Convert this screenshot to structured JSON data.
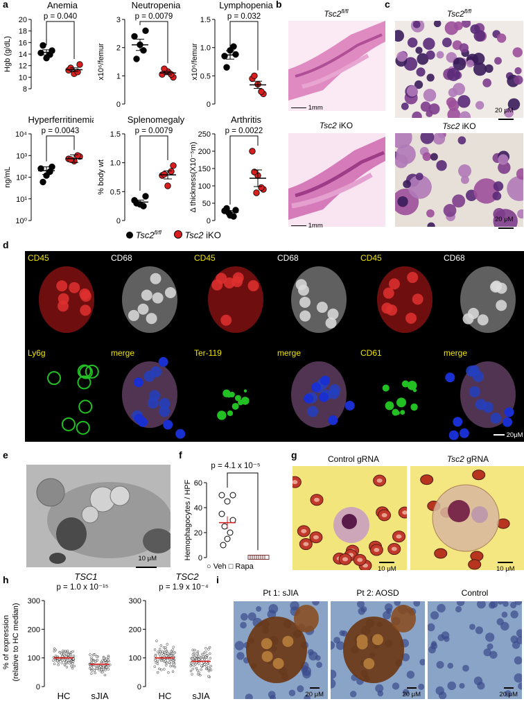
{
  "panels": {
    "a": "a",
    "b": "b",
    "c": "c",
    "d": "d",
    "e": "e",
    "f": "f",
    "g": "g",
    "h": "h",
    "i": "i"
  },
  "panel_a": {
    "legend": {
      "wt_gene": "Tsc2",
      "wt_sup": "fl/fl",
      "ko_gene": "Tsc2",
      "ko_label": "iKO",
      "wt_color": "#000000",
      "ko_color": "#d81e1e"
    },
    "charts": [
      {
        "title": "Anemia",
        "p": "p = 0.040",
        "ylabel": "Hgb (g/dL)",
        "yticks": [
          "20",
          "18",
          "16",
          "14",
          "12",
          "10",
          "8"
        ]
      },
      {
        "title": "Neutropenia",
        "p": "p = 0.0079",
        "ylabel": "x10⁶/femur",
        "yticks": [
          "3",
          "2",
          "1",
          "0"
        ]
      },
      {
        "title": "Lymphopenia",
        "p": "p = 0.032",
        "ylabel": "x10⁶/femur",
        "yticks": [
          "1.5",
          "1.0",
          "0.5",
          "0"
        ]
      },
      {
        "title": "Hyperferritinemia",
        "p": "p = 0.0043",
        "ylabel": "ng/mL",
        "yticks": [
          "10⁴",
          "10³",
          "10²",
          "10¹",
          "10⁰"
        ]
      },
      {
        "title": "Splenomegaly",
        "p": "p = 0.0079",
        "ylabel": "% body wt",
        "yticks": [
          "1.5",
          "1.0",
          "0.5",
          "0"
        ]
      },
      {
        "title": "Arthritis",
        "p": "p = 0.0022",
        "ylabel": "Δ thickness(X10⁻⁵m)",
        "yticks": [
          "250",
          "200",
          "150",
          "100",
          "50",
          "0"
        ]
      }
    ]
  },
  "panel_b": {
    "top_gene": "Tsc2",
    "top_sup": "fl/fl",
    "bottom_gene": "Tsc2",
    "bottom_label": "iKO",
    "scale": "1mm"
  },
  "panel_c": {
    "top_gene": "Tsc2",
    "top_sup": "fl/fl",
    "bottom_gene": "Tsc2",
    "bottom_label": "iKO",
    "scale": "20 μM"
  },
  "panel_d": {
    "groups": [
      {
        "tl": "CD45",
        "tr": "CD68",
        "bl": "Ly6g",
        "br": "merge"
      },
      {
        "tl": "CD45",
        "tr": "CD68",
        "bl": "Ter-119",
        "br": "merge"
      },
      {
        "tl": "CD45",
        "tr": "CD68",
        "bl": "CD61",
        "br": "merge"
      }
    ],
    "scale": "20μM"
  },
  "panel_e": {
    "scale": "10 μM"
  },
  "panel_f": {
    "p": "p = 4.1 x 10⁻⁵",
    "ylabel": "Hemophagocytes / HPF",
    "yticks": [
      "60",
      "40",
      "20",
      "0"
    ],
    "veh": "Veh",
    "rapa": "Rapa"
  },
  "panel_g": {
    "left_title": "Control gRNA",
    "right_gene": "Tsc2",
    "right_title_rest": "gRNA",
    "scale": "10 μM"
  },
  "panel_h": {
    "ylabel1": "% of expression",
    "ylabel2": "(relative to HC median)",
    "charts": [
      {
        "gene": "TSC1",
        "p": "p = 1.0 x 10⁻¹⁵",
        "yticks": [
          "300",
          "200",
          "100",
          "0"
        ],
        "cats": [
          "HC",
          "sJIA"
        ]
      },
      {
        "gene": "TSC2",
        "p": "p = 1.9 x 10⁻⁴",
        "yticks": [
          "300",
          "200",
          "100",
          "0"
        ],
        "cats": [
          "HC",
          "sJIA"
        ]
      }
    ]
  },
  "panel_i": {
    "titles": [
      "Pt 1: sJIA",
      "Pt 2: AOSD",
      "Control"
    ],
    "scale": "20 μM"
  },
  "chart_data": [
    {
      "type": "scatter",
      "title": "Anemia",
      "ylabel": "Hgb (g/dL)",
      "ylim": [
        8,
        20
      ],
      "categories": [
        "Tsc2 fl/fl",
        "Tsc2 iKO"
      ],
      "series": [
        {
          "name": "Tsc2 fl/fl",
          "values": [
            14.2,
            13.3,
            14.6,
            15.5,
            13.9
          ]
        },
        {
          "name": "Tsc2 iKO",
          "values": [
            11.2,
            10.6,
            12.2,
            11.6,
            10.9
          ]
        }
      ],
      "means": [
        14.3,
        11.3
      ]
    },
    {
      "type": "scatter",
      "title": "Neutropenia",
      "ylabel": "x10⁶/femur",
      "ylim": [
        0,
        3
      ],
      "categories": [
        "Tsc2 fl/fl",
        "Tsc2 iKO"
      ],
      "series": [
        {
          "name": "Tsc2 fl/fl",
          "values": [
            2.4,
            2.1,
            2.6,
            1.6,
            1.9
          ]
        },
        {
          "name": "Tsc2 iKO",
          "values": [
            1.05,
            1.15,
            0.95,
            1.25,
            1.05
          ]
        }
      ],
      "means": [
        2.1,
        1.1
      ]
    },
    {
      "type": "scatter",
      "title": "Lymphopenia",
      "ylabel": "x10⁶/femur",
      "ylim": [
        0,
        1.5
      ],
      "categories": [
        "Tsc2 fl/fl",
        "Tsc2 iKO"
      ],
      "series": [
        {
          "name": "Tsc2 fl/fl",
          "values": [
            0.85,
            0.95,
            0.88,
            0.65,
            1.02
          ]
        },
        {
          "name": "Tsc2 iKO",
          "values": [
            0.45,
            0.35,
            0.18,
            0.5,
            0.22
          ]
        }
      ],
      "means": [
        0.87,
        0.34
      ]
    },
    {
      "type": "scatter",
      "title": "Hyperferritinemia",
      "ylabel": "ng/mL",
      "yscale": "log",
      "ylim": [
        1,
        10000
      ],
      "categories": [
        "Tsc2 fl/fl",
        "Tsc2 iKO"
      ],
      "series": [
        {
          "name": "Tsc2 fl/fl",
          "values": [
            250,
            120,
            300,
            60,
            180
          ]
        },
        {
          "name": "Tsc2 iKO",
          "values": [
            700,
            550,
            900,
            650,
            1000
          ]
        }
      ],
      "means": [
        200,
        720
      ]
    },
    {
      "type": "scatter",
      "title": "Splenomegaly",
      "ylabel": "% body wt",
      "ylim": [
        0,
        1.5
      ],
      "categories": [
        "Tsc2 fl/fl",
        "Tsc2 iKO"
      ],
      "series": [
        {
          "name": "Tsc2 fl/fl",
          "values": [
            0.35,
            0.28,
            0.42,
            0.3,
            0.25
          ]
        },
        {
          "name": "Tsc2 iKO",
          "values": [
            0.78,
            0.6,
            0.95,
            0.8,
            0.85
          ]
        }
      ],
      "means": [
        0.32,
        0.79
      ]
    },
    {
      "type": "scatter",
      "title": "Arthritis",
      "ylabel": "Δ thickness(X10⁻⁵m)",
      "ylim": [
        0,
        250
      ],
      "categories": [
        "Tsc2 fl/fl",
        "Tsc2 iKO"
      ],
      "series": [
        {
          "name": "Tsc2 fl/fl",
          "values": [
            28,
            15,
            30,
            35,
            12,
            22
          ]
        },
        {
          "name": "Tsc2 iKO",
          "values": [
            200,
            130,
            90,
            140,
            95,
            80
          ]
        }
      ],
      "means": [
        24,
        122
      ]
    },
    {
      "type": "scatter",
      "title": "",
      "ylabel": "Hemophagocytes / HPF",
      "ylim": [
        0,
        60
      ],
      "categories": [
        "Veh",
        "Rapa"
      ],
      "series": [
        {
          "name": "Veh",
          "values": [
            50,
            50,
            45,
            35,
            30,
            25,
            20,
            15,
            10
          ]
        },
        {
          "name": "Rapa",
          "values": [
            0,
            0,
            0,
            0,
            0,
            0,
            0,
            0,
            0
          ]
        }
      ],
      "means": [
        28,
        0
      ]
    },
    {
      "type": "scatter",
      "title": "TSC1",
      "ylabel": "% of expression (relative to HC median)",
      "ylim": [
        0,
        300
      ],
      "categories": [
        "HC",
        "sJIA"
      ],
      "medians": [
        100,
        78
      ]
    },
    {
      "type": "scatter",
      "title": "TSC2",
      "ylabel": "% of expression (relative to HC median)",
      "ylim": [
        0,
        300
      ],
      "categories": [
        "HC",
        "sJIA"
      ],
      "medians": [
        100,
        88
      ]
    }
  ]
}
